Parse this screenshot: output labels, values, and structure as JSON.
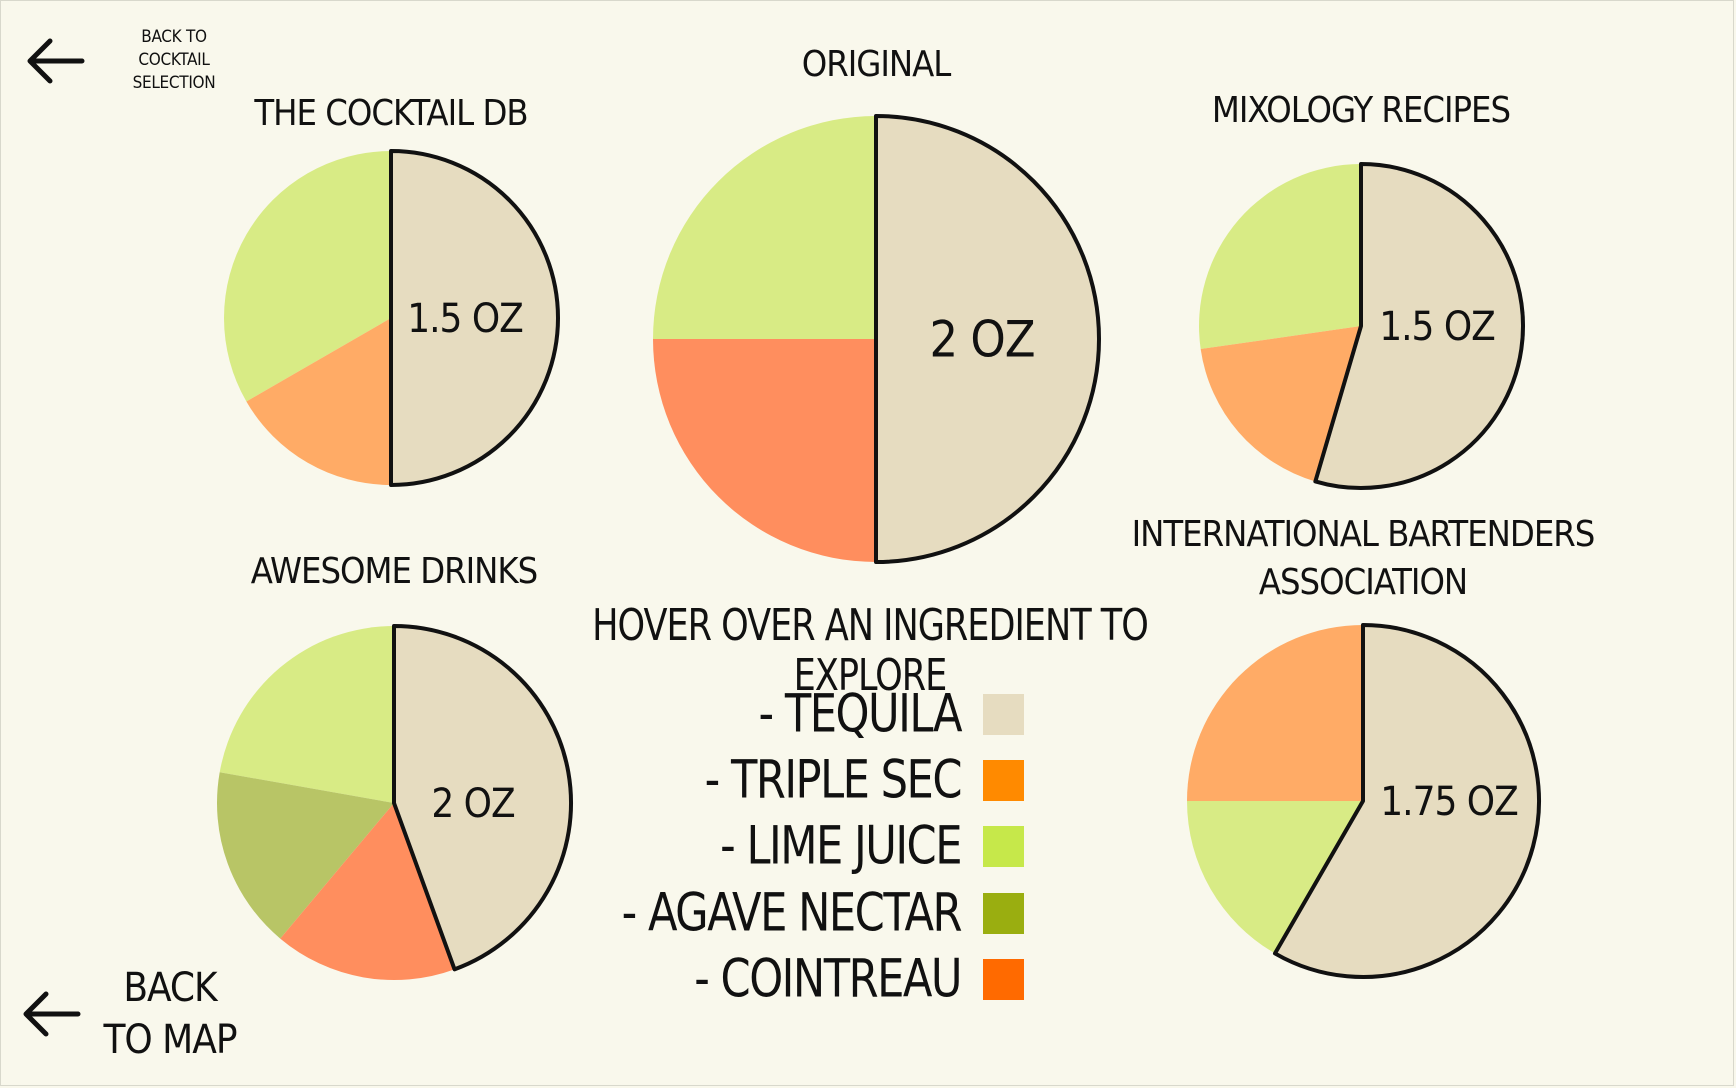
{
  "nav": {
    "back_to_selection": "BACK TO COCKTAIL SELECTION",
    "back_to_map": "BACK TO MAP"
  },
  "legend": {
    "title": "HOVER OVER AN INGREDIENT TO EXPLORE",
    "items": [
      {
        "label": "- TEQUILA",
        "color": "#e6dcc0"
      },
      {
        "label": "- TRIPLE SEC",
        "color": "#ff8a00"
      },
      {
        "label": "- LIME JUICE",
        "color": "#c6e84a"
      },
      {
        "label": "- AGAVE NECTAR",
        "color": "#9aae10"
      },
      {
        "label": "- COINTREAU",
        "color": "#ff6a00"
      }
    ]
  },
  "chart_data": [
    {
      "type": "pie",
      "title": "THE COCKTAIL DB",
      "categories": [
        "Tequila",
        "Lime Juice",
        "Triple Sec"
      ],
      "values": [
        1.5,
        1.0,
        0.5
      ],
      "highlight_label": "1.5 OZ"
    },
    {
      "type": "pie",
      "title": "ORIGINAL",
      "categories": [
        "Tequila",
        "Lime Juice",
        "Cointreau"
      ],
      "values": [
        2,
        1,
        1
      ],
      "highlight_label": "2 OZ"
    },
    {
      "type": "pie",
      "title": "MIXOLOGY RECIPES",
      "categories": [
        "Tequila",
        "Lime Juice",
        "Triple Sec"
      ],
      "values": [
        1.5,
        0.75,
        0.5
      ],
      "highlight_label": "1.5 OZ"
    },
    {
      "type": "pie",
      "title": "AWESOME DRINKS",
      "categories": [
        "Tequila",
        "Lime Juice",
        "Agave Nectar",
        "Cointreau"
      ],
      "values": [
        2,
        1,
        0.75,
        0.75
      ],
      "highlight_label": "2 OZ"
    },
    {
      "type": "pie",
      "title": "INTERNATIONAL BARTENDERS ASSOCIATION",
      "categories": [
        "Tequila",
        "Triple Sec",
        "Lime Juice"
      ],
      "values": [
        1.75,
        0.75,
        0.5
      ],
      "highlight_label": "1.75 OZ"
    }
  ],
  "slice_colors": {
    "Tequila": "#e6dcc0",
    "Lime Juice": "#d8eb85",
    "Triple Sec": "#ffab66",
    "Cointreau": "#ff8e5e",
    "Agave Nectar": "#b8c566"
  }
}
